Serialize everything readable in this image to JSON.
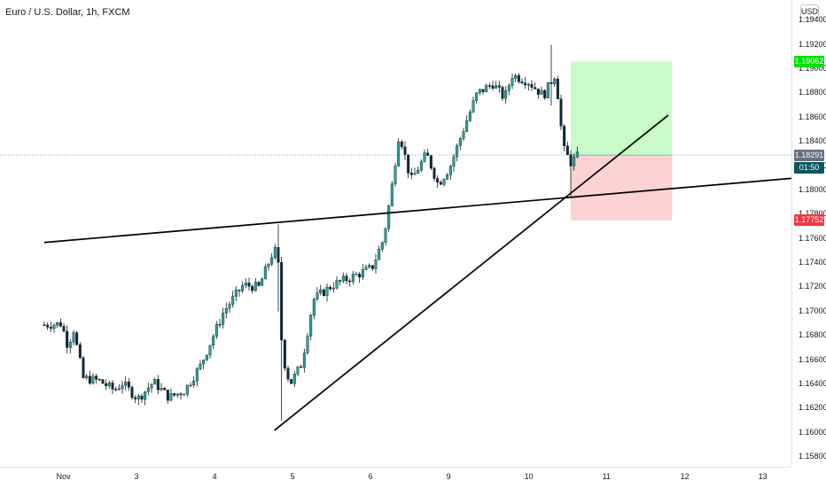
{
  "header": {
    "symbol_title": "Euro / U.S. Dollar, 1h, FXCM",
    "currency": "USD"
  },
  "colors": {
    "up_candle": "#26a69a",
    "down_candle": "#0b2a3a",
    "wick": "#131722",
    "profit_zone": "#c8fbc8",
    "loss_zone": "#fbd3d3",
    "target_badge": "#00e000",
    "current_badge": "#66707e",
    "timer_badge": "#0b5560",
    "stop_badge": "#f23645",
    "trendline": "#000000"
  },
  "chart_data": {
    "type": "candlestick",
    "title": "Euro / U.S. Dollar, 1h, FXCM",
    "instrument": "EURUSD",
    "timeframe": "1h",
    "source": "FXCM",
    "y_axis": {
      "unit": "USD",
      "range": [
        1.1572,
        1.1957
      ],
      "ticks": [
        "1.19400",
        "1.19200",
        "1.19000",
        "1.18800",
        "1.18600",
        "1.18400",
        "1.18200",
        "1.18000",
        "1.17800",
        "1.17600",
        "1.17400",
        "1.17200",
        "1.17000",
        "1.16800",
        "1.16600",
        "1.16400",
        "1.16200",
        "1.16000",
        "1.15800"
      ]
    },
    "x_axis": {
      "ticks": [
        "Nov",
        "3",
        "4",
        "5",
        "6",
        "9",
        "10",
        "11",
        "12",
        "13"
      ],
      "tick_positions": [
        0.2,
        1.2,
        2.2,
        3.2,
        4.2,
        5.2,
        6.2,
        7.2,
        8.2,
        9.2
      ]
    },
    "price_labels": {
      "target": "1.19062",
      "current": "1.18291",
      "timer": "01:50",
      "stop": "1.17752"
    },
    "current_price": 1.18291,
    "close_path": [
      [
        0.0,
        1.1689
      ],
      [
        0.22,
        1.169
      ],
      [
        0.3,
        1.1672
      ],
      [
        0.38,
        1.1686
      ],
      [
        0.42,
        1.167
      ],
      [
        0.5,
        1.1645
      ],
      [
        0.7,
        1.1643
      ],
      [
        0.9,
        1.1635
      ],
      [
        1.0,
        1.1641
      ],
      [
        1.2,
        1.1628
      ],
      [
        1.4,
        1.1642
      ],
      [
        1.6,
        1.1629
      ],
      [
        1.8,
        1.1635
      ],
      [
        2.0,
        1.1655
      ],
      [
        2.3,
        1.17
      ],
      [
        2.55,
        1.1722
      ],
      [
        2.75,
        1.172
      ],
      [
        2.95,
        1.1752
      ],
      [
        3.0,
        1.1738
      ],
      [
        3.05,
        1.1665
      ],
      [
        3.15,
        1.164
      ],
      [
        3.3,
        1.1657
      ],
      [
        3.45,
        1.171
      ],
      [
        3.7,
        1.1722
      ],
      [
        4.0,
        1.173
      ],
      [
        4.2,
        1.1736
      ],
      [
        4.35,
        1.176
      ],
      [
        4.45,
        1.18
      ],
      [
        4.55,
        1.1848
      ],
      [
        4.7,
        1.1808
      ],
      [
        4.9,
        1.183
      ],
      [
        5.05,
        1.1805
      ],
      [
        5.2,
        1.1819
      ],
      [
        5.4,
        1.1855
      ],
      [
        5.55,
        1.188
      ],
      [
        5.75,
        1.1888
      ],
      [
        5.9,
        1.1876
      ],
      [
        6.0,
        1.1895
      ],
      [
        6.2,
        1.189
      ],
      [
        6.4,
        1.1878
      ],
      [
        6.55,
        1.1896
      ],
      [
        6.6,
        1.187
      ],
      [
        6.65,
        1.1835
      ],
      [
        6.75,
        1.1823
      ],
      [
        6.85,
        1.1829
      ]
    ],
    "events": [
      {
        "x": 3.0,
        "high": 1.1772,
        "low": 1.17
      },
      {
        "x": 3.05,
        "high": 1.1745,
        "low": 1.161
      },
      {
        "x": 6.5,
        "high": 1.192,
        "low": 1.187
      },
      {
        "x": 6.75,
        "high": 1.1833,
        "low": 1.1795
      }
    ],
    "trendlines": [
      {
        "from": [
          0.0,
          1.1757
        ],
        "to": [
          9.6,
          1.181
        ]
      },
      {
        "from": [
          2.95,
          1.1602
        ],
        "to": [
          8.0,
          1.1862
        ]
      }
    ],
    "position": {
      "direction": "long",
      "entry": 1.18291,
      "target": 1.19062,
      "stop": 1.17752,
      "x_start": 6.75,
      "x_end": 8.05
    }
  }
}
